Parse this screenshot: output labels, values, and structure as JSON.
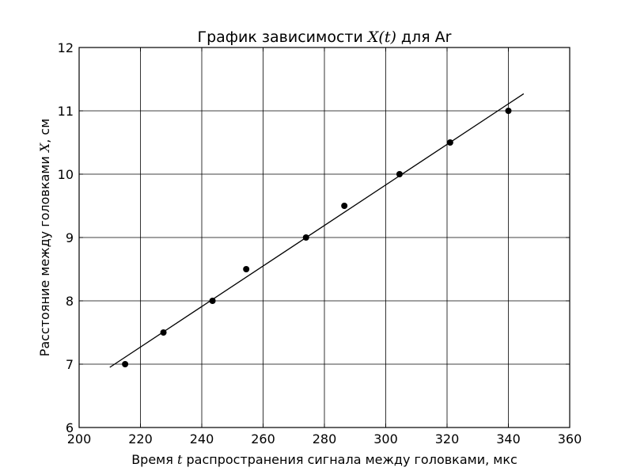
{
  "chart_data": {
    "type": "scatter",
    "title": {
      "before": "График зависимости ",
      "math": "X(t)",
      "after": " для Ar"
    },
    "xlabel": {
      "before": "Время ",
      "math": "t",
      "after": " распространения сигнала между головками, мкс"
    },
    "ylabel": {
      "before": "Расстояние между головками ",
      "math": "X",
      "after": ", см"
    },
    "xlim": [
      200,
      360
    ],
    "ylim": [
      6,
      12
    ],
    "xticks": [
      "200",
      "220",
      "240",
      "260",
      "280",
      "300",
      "320",
      "340",
      "360"
    ],
    "yticks": [
      "6",
      "7",
      "8",
      "9",
      "10",
      "11",
      "12"
    ],
    "grid": true,
    "series": [
      {
        "kind": "points",
        "x": [
          215,
          227.5,
          243.5,
          254.5,
          274,
          286.5,
          304.5,
          321,
          340
        ],
        "y": [
          7,
          7.5,
          8,
          8.5,
          9,
          9.5,
          10,
          10.5,
          11
        ]
      },
      {
        "kind": "fit-line",
        "x": [
          210,
          345
        ],
        "y": [
          6.95,
          11.27
        ]
      }
    ]
  }
}
